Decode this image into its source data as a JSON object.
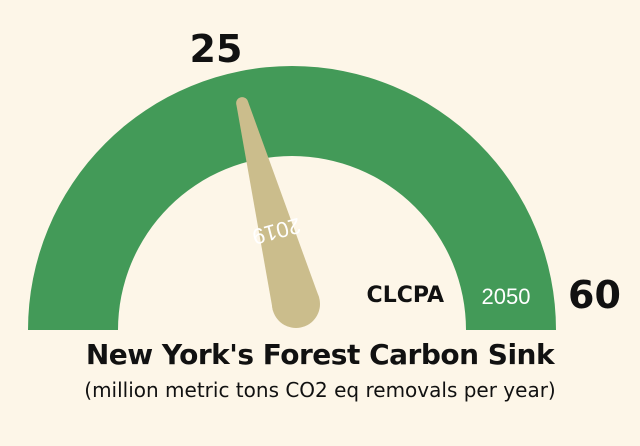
{
  "chart_data": {
    "type": "gauge",
    "title": "New York's Forest Carbon Sink",
    "subtitle": "(million metric tons CO2 eq removals per year)",
    "needle": {
      "label": "2019",
      "value": 25
    },
    "scale_max": {
      "label": "60",
      "value": 60
    },
    "target": {
      "name": "CLCPA",
      "label": "2050",
      "value": 60
    },
    "value_label": "25",
    "colors": {
      "arc": "#439a58",
      "needle": "#cbbd8c",
      "background": "#fdf6e8",
      "text": "#111111",
      "needle_text": "#ffffff"
    }
  }
}
